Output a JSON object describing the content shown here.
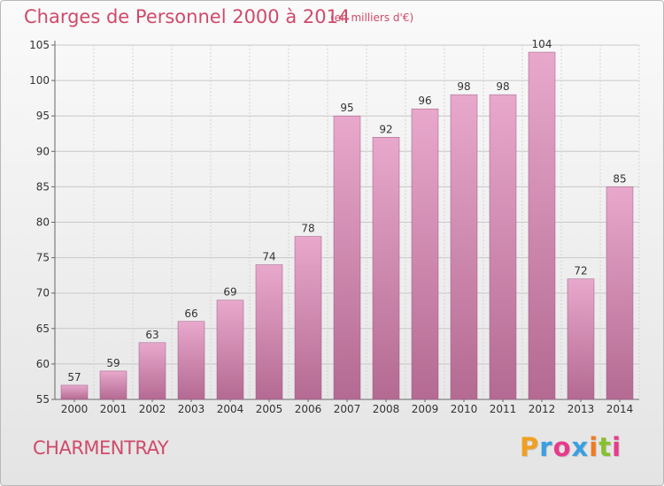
{
  "title": "Charges de Personnel 2000 à 2014",
  "subtitle": "(en milliers d'€)",
  "place": "CHARMENTRAY",
  "logo": {
    "letters": [
      "P",
      "r",
      "o",
      "x",
      "i",
      "t",
      "i"
    ],
    "colors": [
      "#f0a020",
      "#3aa0e0",
      "#e83a8a",
      "#3aa0e0",
      "#f07a20",
      "#88c030",
      "#e83a8a"
    ]
  },
  "colors": {
    "title": "#d04a6a",
    "bar_top": "#e8a8cc",
    "bar_bottom": "#b46a92",
    "bar_edge": "#9c5a80"
  },
  "chart_data": {
    "type": "bar",
    "title": "Charges de Personnel 2000 à 2014",
    "subtitle": "(en milliers d'€)",
    "categories": [
      "2000",
      "2001",
      "2002",
      "2003",
      "2004",
      "2005",
      "2006",
      "2007",
      "2008",
      "2009",
      "2010",
      "2011",
      "2012",
      "2013",
      "2014"
    ],
    "values": [
      57,
      59,
      63,
      66,
      69,
      74,
      78,
      95,
      92,
      96,
      98,
      98,
      104,
      72,
      85
    ],
    "ylim": [
      55,
      105
    ],
    "yticks": [
      55,
      60,
      65,
      70,
      75,
      80,
      85,
      90,
      95,
      100,
      105
    ],
    "grid": true,
    "legend": "none"
  }
}
